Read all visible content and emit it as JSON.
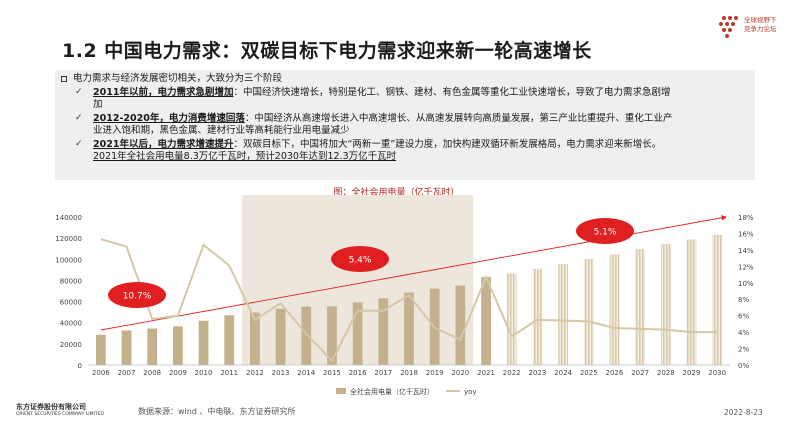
{
  "header": {
    "title": "1.2 中国电力需求：双碳目标下电力需求迎来新一轮高速增长",
    "logo_line1": "全球视野下",
    "logo_line2": "竞争力论坛"
  },
  "summary": {
    "lead": "电力需求与经济发展密切相关，大致分为三个阶段",
    "items": [
      {
        "bold": "2011年以前，电力需求急剧增加",
        "line1": "：中国经济快速增长，特别是化工、钢铁、建材、有色金属等重化工业快速增长，导致了电力需求急剧增",
        "line2": "加"
      },
      {
        "bold": "2012-2020年，电力消费增速回落",
        "line1": "：中国经济从高速增长进入中高速增长、从高速发展转向高质量发展，第三产业比重提升、重化工业产",
        "line2": "业进入饱和期，黑色金属、建材行业等高耗能行业用电量减少"
      },
      {
        "bold": "2021年以后，电力需求增速提升",
        "line1": "：双碳目标下，中国将加大“两新一重”建设力度，加快构建双循环新发展格局，电力需求迎来新增长。",
        "line2": "2021年全社会用电量8.3万亿千瓦时，预计2030年达到12.3万亿千瓦时"
      }
    ]
  },
  "chart_data": {
    "type": "bar",
    "title": "图：全社会用电量（亿千瓦时）",
    "categories": [
      "2006",
      "2007",
      "2008",
      "2009",
      "2010",
      "2011",
      "2012",
      "2013",
      "2014",
      "2015",
      "2016",
      "2017",
      "2018",
      "2019",
      "2020",
      "2021",
      "2022",
      "2023",
      "2024",
      "2025",
      "2026",
      "2027",
      "2028",
      "2029",
      "2030"
    ],
    "series": [
      {
        "name": "全社会用电量（亿千瓦时）",
        "axis": "left",
        "values": [
          28588,
          32712,
          34541,
          36595,
          41923,
          47001,
          49591,
          53223,
          55233,
          55500,
          59198,
          63077,
          68449,
          72255,
          75110,
          83128,
          86500,
          91000,
          95500,
          100300,
          104800,
          109600,
          114500,
          118800,
          123000
        ],
        "forecast_from": "2022"
      },
      {
        "name": "yoy",
        "axis": "right",
        "values": [
          15.3,
          14.4,
          5.6,
          6.0,
          14.6,
          12.1,
          5.5,
          7.5,
          3.8,
          0.5,
          6.6,
          6.6,
          8.5,
          4.5,
          3.1,
          10.7,
          3.5,
          5.5,
          5.4,
          5.3,
          4.5,
          4.4,
          4.3,
          4.0,
          4.0
        ]
      }
    ],
    "y_left": {
      "min": 0,
      "max": 140000,
      "ticks": [
        "0",
        "20000",
        "40000",
        "60000",
        "80000",
        "100000",
        "120000",
        "140000"
      ]
    },
    "y_right": {
      "min": 0,
      "max": 18,
      "ticks": [
        "0%",
        "2%",
        "4%",
        "6%",
        "8%",
        "10%",
        "12%",
        "14%",
        "16%",
        "18%"
      ]
    },
    "annotations": [
      {
        "label": "10.7%",
        "period": "2006-2011"
      },
      {
        "label": "5.4%",
        "period": "2012-2020"
      },
      {
        "label": "5.1%",
        "period": "2021-2030"
      }
    ],
    "legend": [
      "全社会用电量（亿千瓦时）",
      "yoy"
    ],
    "legend_position": "bottom",
    "colors": {
      "bar": "#c4b08a",
      "forecast_bar": "#d9c9a8",
      "yoy": "#d4c8a8",
      "trend": "#e02020",
      "shade": "#ede6dc",
      "ellipse": "#e02020"
    }
  },
  "footer": {
    "company": "东方证券股份有限公司",
    "company_en": "ORIENT SECURITIES COMPANY LIMITED",
    "source": "数据来源：wind 、中电联、东方证券研究所",
    "date": "2022-8-23"
  }
}
